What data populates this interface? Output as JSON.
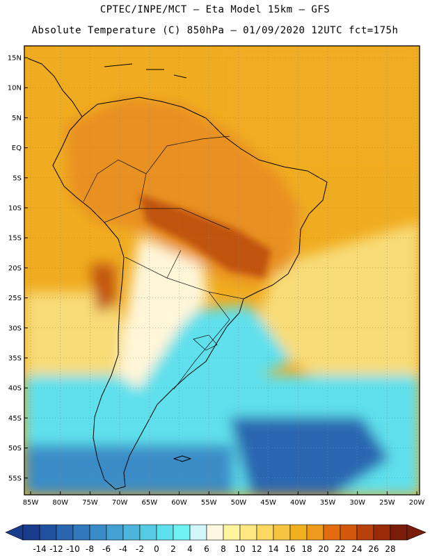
{
  "title": {
    "line1": "CPTEC/INPE/MCT –  Eta Model 15km – GFS",
    "line2": "Absolute Temperature (C) 850hPa – 01/09/2020 12UTC fct=175h"
  },
  "axes": {
    "lat_labels": [
      "15N",
      "10N",
      "5N",
      "EQ",
      "5S",
      "10S",
      "15S",
      "20S",
      "25S",
      "30S",
      "35S",
      "40S",
      "45S",
      "50S",
      "55S"
    ],
    "lon_labels": [
      "85W",
      "80W",
      "75W",
      "70W",
      "65W",
      "60W",
      "55W",
      "50W",
      "45W",
      "40W",
      "35W",
      "30W",
      "25W",
      "20W"
    ]
  },
  "colorbar": {
    "labels": [
      "-14",
      "-12",
      "-10",
      "-8",
      "-6",
      "-4",
      "-2",
      "0",
      "2",
      "4",
      "6",
      "8",
      "10",
      "12",
      "14",
      "16",
      "18",
      "20",
      "22",
      "24",
      "26",
      "28"
    ],
    "colors": [
      "#1a3c8c",
      "#2050a0",
      "#2a66b0",
      "#3278bc",
      "#3a8cc6",
      "#43a0d0",
      "#4cb6da",
      "#55cce4",
      "#5ee0ec",
      "#6ef2f2",
      "#d0f6fa",
      "#fff8e0",
      "#fff4a0",
      "#ffe880",
      "#fcd860",
      "#f6c440",
      "#f0b020",
      "#ee9a1a",
      "#e46c10",
      "#d2580c",
      "#b8400a",
      "#9a2a08",
      "#7a1c0a"
    ]
  },
  "palette": {
    "hot": "#c0520e",
    "warm": "#e89020",
    "orange": "#f0ac20",
    "yellow": "#f8dc78",
    "cream": "#fff6d8",
    "cyan": "#5ee0ec",
    "blue": "#3a8cc6",
    "deep": "#2a66b0"
  }
}
